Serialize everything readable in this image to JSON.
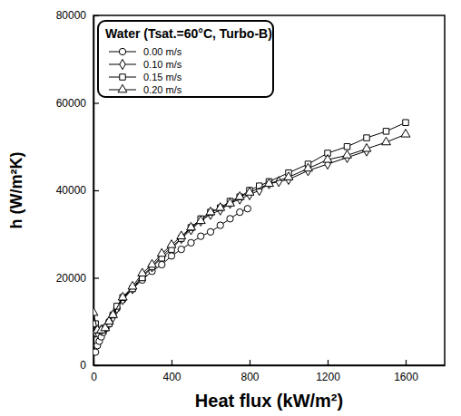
{
  "chart_data": {
    "type": "line",
    "x_label": "Heat flux (kW/m²)",
    "y_label": "h (W/m²K)",
    "legend_title": "Water (Tsat.=60°C, Turbo-B)",
    "legend": "upper left",
    "grid": false,
    "xlim": [
      0,
      1800
    ],
    "xticks": [
      0,
      400,
      800,
      1200,
      1600
    ],
    "ylim": [
      0,
      80000
    ],
    "yticks": [
      0,
      20000,
      40000,
      60000,
      80000
    ],
    "series": [
      {
        "name": "0.00 m/s",
        "color": "#000000",
        "marker": "circle",
        "line_style": "solid",
        "x": [
          10,
          20,
          30,
          40,
          50,
          60,
          80,
          100,
          120,
          150,
          200,
          250,
          300,
          350,
          400,
          450,
          500,
          550,
          600,
          650,
          700,
          750,
          790
        ],
        "values": [
          3000,
          4500,
          5500,
          6500,
          7500,
          8500,
          10000,
          11500,
          13000,
          15000,
          17500,
          19500,
          21500,
          23000,
          25000,
          26500,
          28000,
          29500,
          30500,
          32000,
          33500,
          35000,
          35800
        ]
      },
      {
        "name": "0.10 m/s",
        "color": "#000000",
        "marker": "diamond",
        "line_style": "solid",
        "x": [
          10,
          20,
          40,
          60,
          80,
          100,
          120,
          150,
          200,
          250,
          300,
          350,
          400,
          450,
          500,
          550,
          600,
          650,
          700,
          750,
          800,
          850,
          900,
          950,
          1000,
          1100,
          1200,
          1300,
          1400
        ],
        "values": [
          7500,
          7500,
          8000,
          8500,
          9500,
          11000,
          13000,
          15000,
          17500,
          20500,
          22500,
          25000,
          27000,
          29000,
          31000,
          33000,
          34500,
          35500,
          37000,
          38000,
          39000,
          40000,
          41500,
          42000,
          42500,
          44500,
          46000,
          47500,
          49000
        ]
      },
      {
        "name": "0.15 m/s",
        "color": "#000000",
        "marker": "square",
        "line_style": "solid",
        "x": [
          10,
          20,
          40,
          60,
          80,
          100,
          120,
          150,
          200,
          250,
          300,
          350,
          400,
          450,
          500,
          550,
          600,
          650,
          700,
          750,
          800,
          850,
          900,
          1000,
          1100,
          1200,
          1300,
          1400,
          1500,
          1600
        ],
        "values": [
          9500,
          8000,
          8000,
          8500,
          9500,
          11500,
          13500,
          15500,
          17500,
          20000,
          22500,
          24500,
          26500,
          29000,
          31500,
          33500,
          35000,
          36000,
          37500,
          38500,
          40000,
          41000,
          42000,
          44000,
          46000,
          48500,
          50000,
          52000,
          53500,
          55500
        ]
      },
      {
        "name": "0.20 m/s",
        "color": "#000000",
        "marker": "triangle",
        "line_style": "solid",
        "x": [
          0,
          20,
          40,
          60,
          80,
          100,
          150,
          200,
          250,
          300,
          350,
          400,
          450,
          500,
          550,
          600,
          650,
          700,
          750,
          800,
          900,
          1000,
          1100,
          1200,
          1300,
          1400,
          1500,
          1600
        ],
        "values": [
          12000,
          8000,
          8000,
          8500,
          10000,
          11500,
          15500,
          18000,
          21000,
          23000,
          25500,
          27500,
          29500,
          31500,
          33000,
          35000,
          36000,
          37000,
          38500,
          39500,
          41500,
          43000,
          45000,
          47000,
          48000,
          49500,
          51000,
          52800
        ]
      }
    ]
  }
}
